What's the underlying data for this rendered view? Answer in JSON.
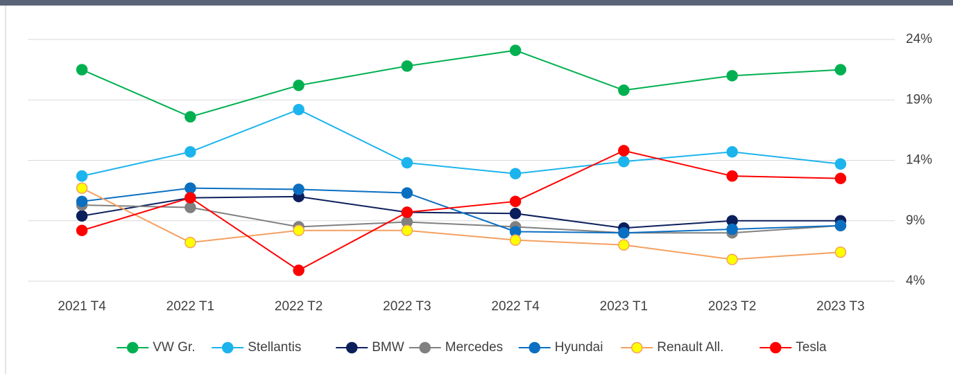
{
  "chart_data": {
    "type": "line",
    "categories": [
      "2021 T4",
      "2022 T1",
      "2022 T2",
      "2022 T3",
      "2022 T4",
      "2023 T1",
      "2023 T2",
      "2023 T3"
    ],
    "ylim": [
      4,
      24
    ],
    "yticks": [
      {
        "value": 4,
        "label": "4%"
      },
      {
        "value": 9,
        "label": "9%"
      },
      {
        "value": 14,
        "label": "14%"
      },
      {
        "value": 19,
        "label": "19%"
      },
      {
        "value": 24,
        "label": "24%"
      }
    ],
    "grid": true,
    "legend": "bottom",
    "series": [
      {
        "name": "VW Gr.",
        "color": "#00b050",
        "values": [
          21.5,
          17.6,
          20.2,
          21.8,
          23.1,
          19.8,
          21.0,
          21.5
        ]
      },
      {
        "name": "Stellantis",
        "color": "#1cb4ec",
        "values": [
          12.7,
          14.7,
          18.2,
          13.8,
          12.9,
          13.9,
          14.7,
          13.7
        ]
      },
      {
        "name": "BMW",
        "color": "#0b1f5c",
        "values": [
          9.4,
          10.9,
          11.0,
          9.7,
          9.6,
          8.4,
          9.0,
          9.0
        ]
      },
      {
        "name": "Mercedes",
        "color": "#808080",
        "values": [
          10.3,
          10.1,
          8.5,
          8.9,
          8.5,
          8.0,
          8.0,
          8.6
        ]
      },
      {
        "name": "Hyundai",
        "color": "#0b6fc1",
        "values": [
          10.6,
          11.7,
          11.6,
          11.3,
          8.1,
          8.0,
          8.3,
          8.6
        ]
      },
      {
        "name": "Renault All.",
        "color": "#f4a060",
        "marker_fill": "#ffff00",
        "values": [
          11.7,
          7.2,
          8.2,
          8.2,
          7.4,
          7.0,
          5.8,
          6.4
        ]
      },
      {
        "name": "Tesla",
        "color": "#ff0000",
        "values": [
          8.2,
          10.9,
          4.9,
          9.7,
          10.6,
          14.8,
          12.7,
          12.5
        ]
      }
    ]
  }
}
